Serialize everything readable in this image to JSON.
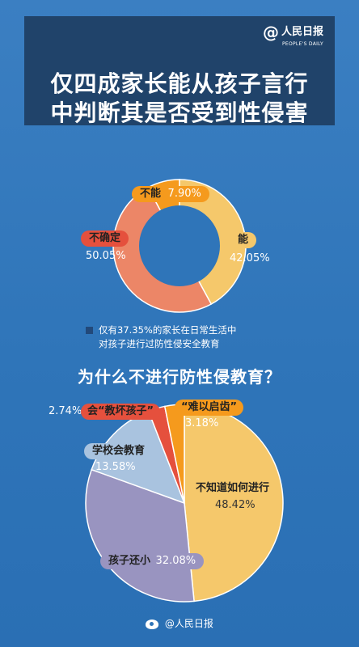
{
  "header": {
    "logo_mark": "@",
    "logo_name": "人民日报",
    "logo_sub": "PEOPLE'S DAILY",
    "title_line1": "仅四成家长能从孩子言行",
    "title_line2": "中判断其是否受到性侵害"
  },
  "colors": {
    "background": "#2f75b9",
    "header_bg": "#20436a",
    "orange": "#f59a1d",
    "yellow": "#f5c86b",
    "salmon": "#ec8667",
    "red": "#e5503d",
    "lavender": "#9994c0",
    "lightblue": "#a9c3df",
    "donut_hole": "#2f75b9"
  },
  "note": {
    "line1": "仅有37.35%的家长在日常生活中",
    "line2": "对孩子进行过防性侵安全教育"
  },
  "question": "为什么不进行防性侵教育？",
  "footer": {
    "text": "@人民日报"
  },
  "chart_data": [
    {
      "type": "pie",
      "donut": true,
      "slices": [
        {
          "label": "不能",
          "value": 7.9,
          "display": "7.90%",
          "color": "#f59a1d"
        },
        {
          "label": "能",
          "value": 42.05,
          "display": "42.05%",
          "color": "#f5c86b"
        },
        {
          "label": "不确定",
          "value": 50.05,
          "display": "50.05%",
          "color": "#ec8667"
        }
      ]
    },
    {
      "type": "pie",
      "donut": false,
      "slices": [
        {
          "label": "不知道如何进行",
          "value": 48.42,
          "display": "48.42%",
          "color": "#f5c86b"
        },
        {
          "label": "孩子还小",
          "value": 32.08,
          "display": "32.08%",
          "color": "#9994c0"
        },
        {
          "label": "学校会教育",
          "value": 13.58,
          "display": "13.58%",
          "color": "#a9c3df"
        },
        {
          "label": "会“教坏孩子”",
          "value": 2.74,
          "display": "2.74%",
          "color": "#e5503d"
        },
        {
          "label": "“难以启齿”",
          "value": 3.18,
          "display": "3.18%",
          "color": "#f59a1d"
        }
      ]
    }
  ]
}
